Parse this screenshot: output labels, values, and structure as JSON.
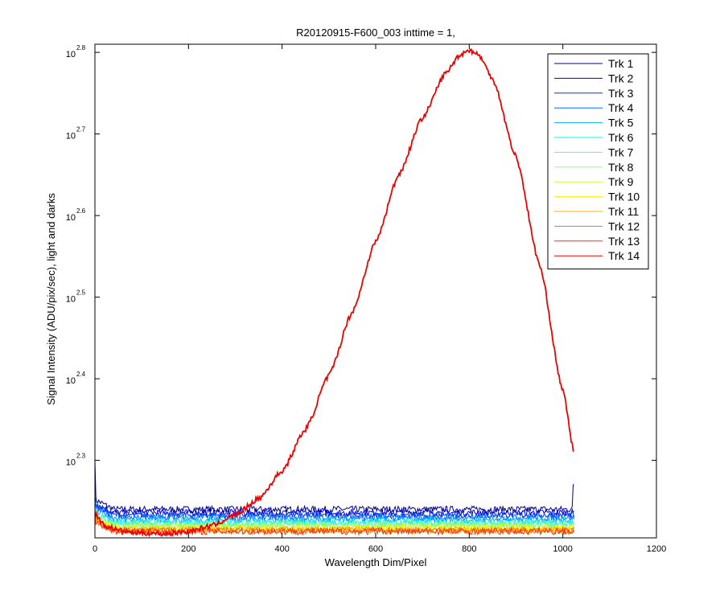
{
  "chart_data": {
    "type": "line",
    "title": "R20120915-F600_003 inttime = 1,",
    "xlabel": "Wavelength Dim/Pixel",
    "ylabel": "Signal Intensity (ADU/pix/sec), light and darks",
    "xlim": [
      0,
      1200
    ],
    "ylim_log10": [
      2.205,
      2.81
    ],
    "y_scale": "log",
    "x_ticks": [
      "0",
      "200",
      "400",
      "600",
      "800",
      "1000",
      "1200"
    ],
    "y_ticks": [
      {
        "base": "10",
        "exp": "2.3",
        "log10": 2.3
      },
      {
        "base": "10",
        "exp": "2.4",
        "log10": 2.4
      },
      {
        "base": "10",
        "exp": "2.5",
        "log10": 2.5
      },
      {
        "base": "10",
        "exp": "2.6",
        "log10": 2.6
      },
      {
        "base": "10",
        "exp": "2.7",
        "log10": 2.7
      },
      {
        "base": "10",
        "exp": "2.8",
        "log10": 2.8
      }
    ],
    "grid": false,
    "legend_position": "top-right",
    "series": [
      {
        "name": "Trk 1",
        "color": "#00008F",
        "level_log10": 2.24
      },
      {
        "name": "Trk 2",
        "color": "#0000CF",
        "level_log10": 2.236
      },
      {
        "name": "Trk 3",
        "color": "#0030FF",
        "level_log10": 2.233
      },
      {
        "name": "Trk 4",
        "color": "#0070FF",
        "level_log10": 2.23
      },
      {
        "name": "Trk 5",
        "color": "#00B0FF",
        "level_log10": 2.227
      },
      {
        "name": "Trk 6",
        "color": "#10F0EF",
        "level_log10": 2.224
      },
      {
        "name": "Trk 7",
        "color": "#50FFAF",
        "level_log10": 2.222
      },
      {
        "name": "Trk 8",
        "color": "#90FF6F",
        "level_log10": 2.22
      },
      {
        "name": "Trk 9",
        "color": "#CFFF30",
        "level_log10": 2.218
      },
      {
        "name": "Trk 10",
        "color": "#FFEF00",
        "level_log10": 2.216
      },
      {
        "name": "Trk 11",
        "color": "#FFAF00",
        "level_log10": 2.215
      },
      {
        "name": "Trk 12",
        "color": "#FF7000",
        "level_log10": 2.214
      },
      {
        "name": "Trk 13",
        "color": "#FF3000",
        "level_log10": 2.213
      },
      {
        "name": "Trk 14",
        "color": "#EF0000",
        "x": [
          0,
          20,
          60,
          100,
          150,
          200,
          250,
          300,
          350,
          400,
          450,
          500,
          550,
          600,
          650,
          700,
          750,
          780,
          800,
          820,
          850,
          900,
          950,
          1000,
          1024
        ],
        "y_log10": [
          2.235,
          2.22,
          2.213,
          2.211,
          2.21,
          2.213,
          2.22,
          2.233,
          2.253,
          2.287,
          2.338,
          2.404,
          2.482,
          2.568,
          2.651,
          2.72,
          2.775,
          2.797,
          2.803,
          2.797,
          2.768,
          2.672,
          2.54,
          2.385,
          2.31
        ]
      }
    ],
    "dark_x_end": 1024
  },
  "ui": {
    "legend_entries": [
      "Trk 1",
      "Trk 2",
      "Trk 3",
      "Trk 4",
      "Trk 5",
      "Trk 6",
      "Trk 7",
      "Trk 8",
      "Trk 9",
      "Trk 10",
      "Trk 11",
      "Trk 12",
      "Trk 13",
      "Trk 14"
    ]
  }
}
